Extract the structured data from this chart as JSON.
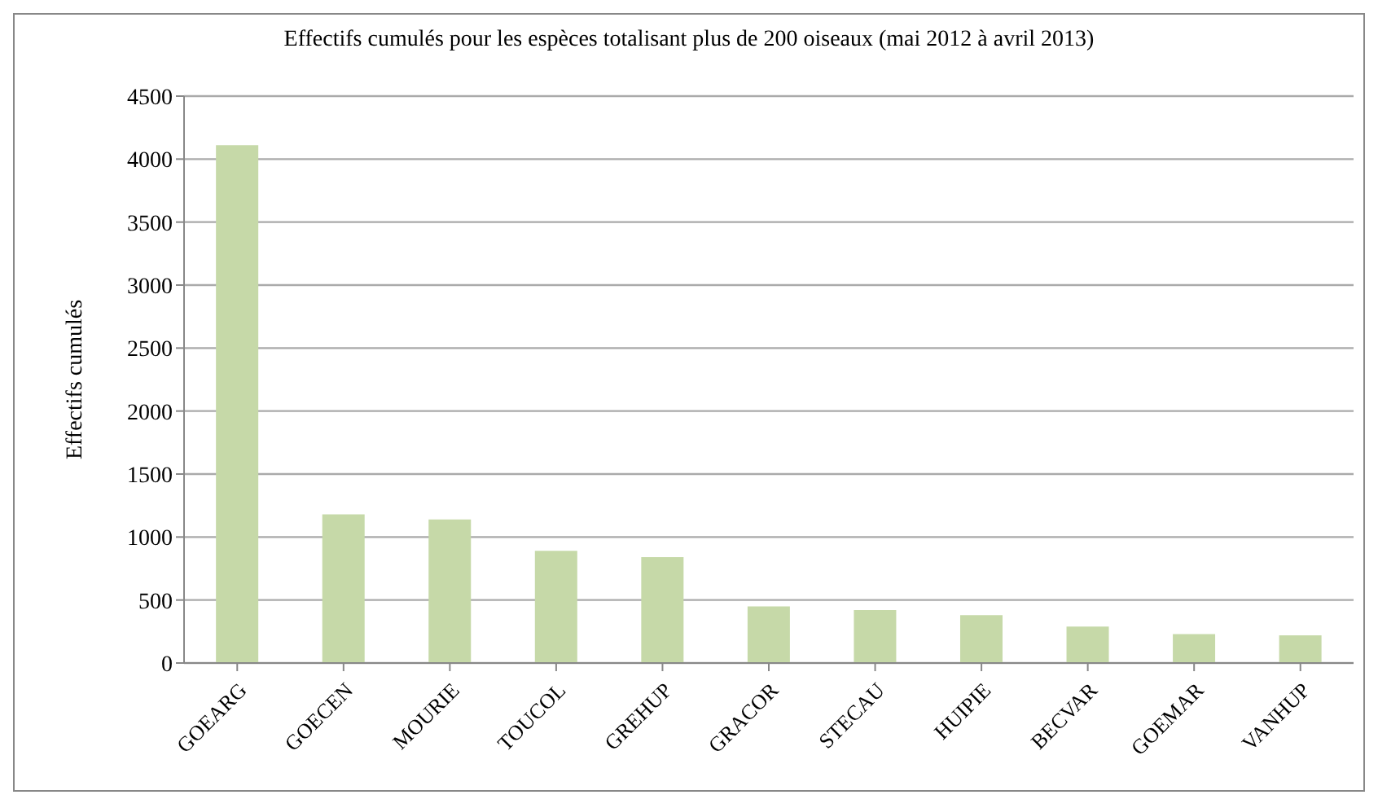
{
  "chart_data": {
    "type": "bar",
    "title": "Effectifs cumulés pour les espèces totalisant plus de 200 oiseaux (mai 2012 à avril 2013)",
    "ylabel": "Effectifs cumulés",
    "categories": [
      "GOEARG",
      "GOECEN",
      "MOURIE",
      "TOUCOL",
      "GREHUP",
      "GRACOR",
      "STECAU",
      "HUIPIE",
      "BECVAR",
      "GOEMAR",
      "VANHUP"
    ],
    "values": [
      4110,
      1180,
      1140,
      890,
      840,
      450,
      420,
      380,
      290,
      230,
      220
    ],
    "color": "#c6d9a8",
    "ylim": [
      0,
      4500
    ],
    "yticks": [
      0,
      500,
      1000,
      1500,
      2000,
      2500,
      3000,
      3500,
      4000,
      4500
    ],
    "grid": "y"
  }
}
